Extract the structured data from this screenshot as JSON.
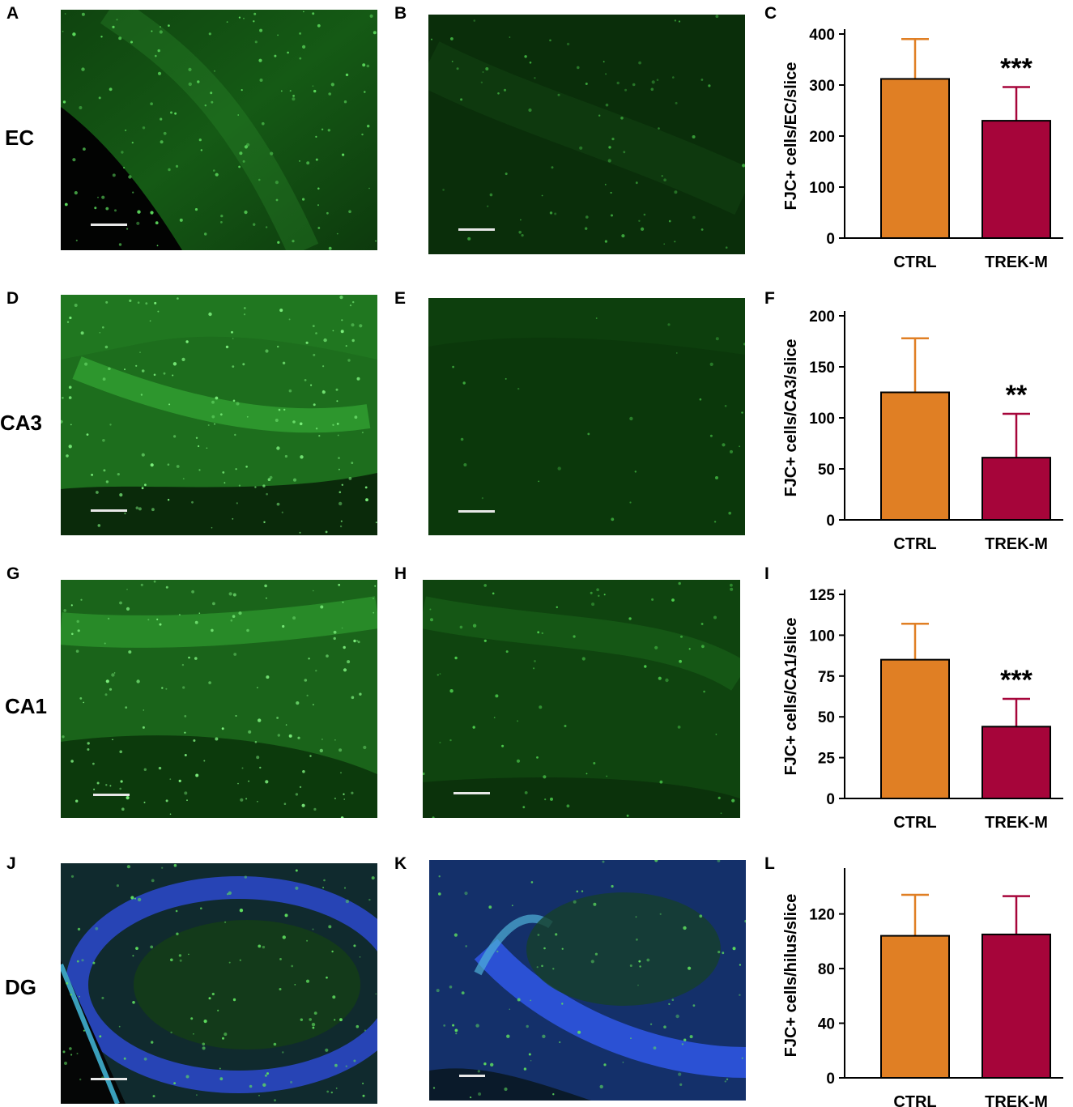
{
  "panel_letters": [
    "A",
    "B",
    "C",
    "D",
    "E",
    "F",
    "G",
    "H",
    "I",
    "J",
    "K",
    "L"
  ],
  "row_labels": [
    "EC",
    "CA3",
    "CA1",
    "DG"
  ],
  "colors": {
    "ctrl": "#e07f24",
    "trek": "#a6053a",
    "green_stain": "#0c3d0c",
    "blue_stain": "#1d3aa8"
  },
  "chart_data": [
    {
      "type": "bar",
      "panel": "C",
      "categories": [
        "CTRL",
        "TREK-M"
      ],
      "values": [
        312,
        230
      ],
      "errors": [
        78,
        66
      ],
      "ylabel": "FJC+ cells/EC/slice",
      "ylim": [
        0,
        400
      ],
      "ticks": [
        0,
        100,
        200,
        300,
        400
      ],
      "significance": "***"
    },
    {
      "type": "bar",
      "panel": "F",
      "categories": [
        "CTRL",
        "TREK-M"
      ],
      "values": [
        125,
        61
      ],
      "errors": [
        53,
        43
      ],
      "ylabel": "FJC+ cells/CA3/slice",
      "ylim": [
        0,
        200
      ],
      "ticks": [
        0,
        50,
        100,
        150,
        200
      ],
      "significance": "**"
    },
    {
      "type": "bar",
      "panel": "I",
      "categories": [
        "CTRL",
        "TREK-M"
      ],
      "values": [
        85,
        44
      ],
      "errors": [
        22,
        17
      ],
      "ylabel": "FJC+ cells/CA1/slice",
      "ylim": [
        0,
        125
      ],
      "ticks": [
        0,
        25,
        50,
        75,
        100,
        125
      ],
      "significance": "***"
    },
    {
      "type": "bar",
      "panel": "L",
      "categories": [
        "CTRL",
        "TREK-M"
      ],
      "values": [
        104,
        105
      ],
      "errors": [
        30,
        28
      ],
      "ylabel": "FJC+ cells/hilus/slice",
      "ylim": [
        0,
        150
      ],
      "ticks": [
        0,
        40,
        80,
        120
      ],
      "significance": ""
    }
  ]
}
